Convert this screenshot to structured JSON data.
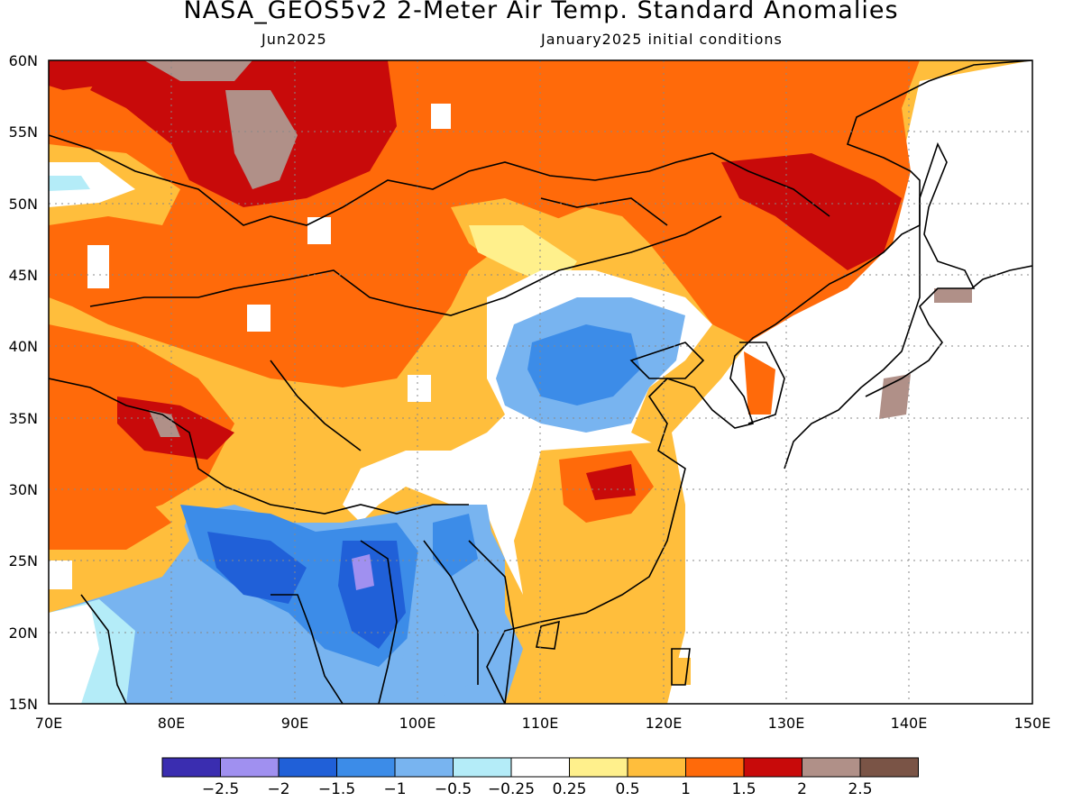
{
  "title": "NASA_GEOS5v2 2-Meter Air Temp. Standard Anomalies",
  "subtitle_left": "Jun2025",
  "subtitle_right": "January2025 initial conditions",
  "map": {
    "lon_range": [
      70,
      150
    ],
    "lat_range": [
      15,
      60
    ],
    "lon_ticks": [
      "70E",
      "80E",
      "90E",
      "100E",
      "110E",
      "120E",
      "130E",
      "140E",
      "150E"
    ],
    "lat_ticks": [
      "60N",
      "55N",
      "50N",
      "45N",
      "40N",
      "35N",
      "30N",
      "25N",
      "20N",
      "15N"
    ]
  },
  "legend": {
    "colors": [
      "#3a2db0",
      "#a090f0",
      "#2060d8",
      "#3c8ce8",
      "#78b4f0",
      "#b4ecf8",
      "#ffffff",
      "#fff08c",
      "#ffbe3c",
      "#ff6a0a",
      "#c80a0a",
      "#b09088",
      "#7a5446"
    ],
    "labels": [
      "−2.5",
      "−2",
      "−1.5",
      "−1",
      "−0.5",
      "−0.25",
      "0.25",
      "0.5",
      "1",
      "1.5",
      "2",
      "2.5"
    ]
  }
}
